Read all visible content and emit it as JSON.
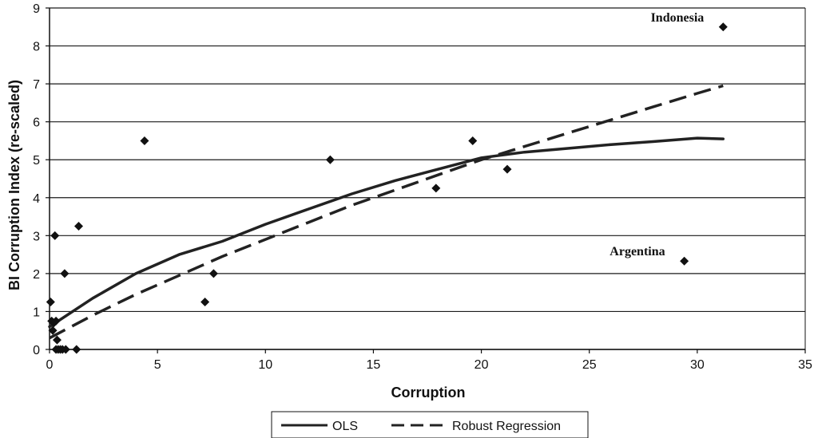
{
  "chart_data": {
    "type": "scatter",
    "title": "",
    "xlabel": "Corruption",
    "ylabel": "BI Corruption Index (re-scaled)",
    "xlim": [
      0,
      35
    ],
    "ylim": [
      0,
      9
    ],
    "x_ticks": [
      "0",
      "5",
      "10",
      "15",
      "20",
      "25",
      "30",
      "35"
    ],
    "y_ticks": [
      "0",
      "1",
      "2",
      "3",
      "4",
      "5",
      "6",
      "7",
      "8",
      "9"
    ],
    "grid": "horizontal",
    "legend_placement": "bottom-center",
    "points": [
      {
        "x": 0.05,
        "y": 1.25
      },
      {
        "x": 0.1,
        "y": 0.75
      },
      {
        "x": 0.15,
        "y": 0.5
      },
      {
        "x": 0.2,
        "y": 0.7
      },
      {
        "x": 0.25,
        "y": 3.0
      },
      {
        "x": 0.3,
        "y": 0.75
      },
      {
        "x": 0.3,
        "y": 0.0
      },
      {
        "x": 0.35,
        "y": 0.25
      },
      {
        "x": 0.4,
        "y": 0.0
      },
      {
        "x": 0.5,
        "y": 0.0
      },
      {
        "x": 0.6,
        "y": 0.0
      },
      {
        "x": 0.7,
        "y": 2.0
      },
      {
        "x": 0.75,
        "y": 0.0
      },
      {
        "x": 1.25,
        "y": 0.0
      },
      {
        "x": 1.35,
        "y": 3.25
      },
      {
        "x": 4.4,
        "y": 5.5
      },
      {
        "x": 7.2,
        "y": 1.25
      },
      {
        "x": 7.6,
        "y": 2.0
      },
      {
        "x": 13.0,
        "y": 5.0
      },
      {
        "x": 17.9,
        "y": 4.25
      },
      {
        "x": 19.6,
        "y": 5.5
      },
      {
        "x": 21.2,
        "y": 4.75
      },
      {
        "x": 29.4,
        "y": 2.33
      },
      {
        "x": 31.2,
        "y": 8.5
      }
    ],
    "annotations": [
      {
        "text": "Indonesia",
        "x": 31.2,
        "y": 8.5
      },
      {
        "text": "Argentina",
        "x": 29.4,
        "y": 2.33
      }
    ],
    "series": [
      {
        "name": "OLS",
        "style": "solid",
        "x": [
          0,
          2,
          4,
          6,
          8,
          10,
          12,
          14,
          16,
          18,
          20,
          22,
          24,
          26,
          28,
          30,
          31.2
        ],
        "y": [
          0.6,
          1.35,
          2.0,
          2.5,
          2.85,
          3.3,
          3.7,
          4.1,
          4.45,
          4.75,
          5.05,
          5.2,
          5.3,
          5.4,
          5.48,
          5.57,
          5.55
        ]
      },
      {
        "name": "Robust Regression",
        "style": "dashed",
        "x": [
          0,
          2,
          4,
          6,
          8,
          10,
          12,
          14,
          16,
          18,
          20,
          22,
          24,
          26,
          28,
          30,
          31.2
        ],
        "y": [
          0.3,
          0.9,
          1.45,
          1.95,
          2.45,
          2.9,
          3.35,
          3.8,
          4.2,
          4.6,
          5.0,
          5.35,
          5.7,
          6.05,
          6.4,
          6.75,
          6.95
        ]
      }
    ],
    "colors": {
      "marks": "#111111",
      "grid": "#1a1a1a",
      "background": "#ffffff"
    }
  }
}
